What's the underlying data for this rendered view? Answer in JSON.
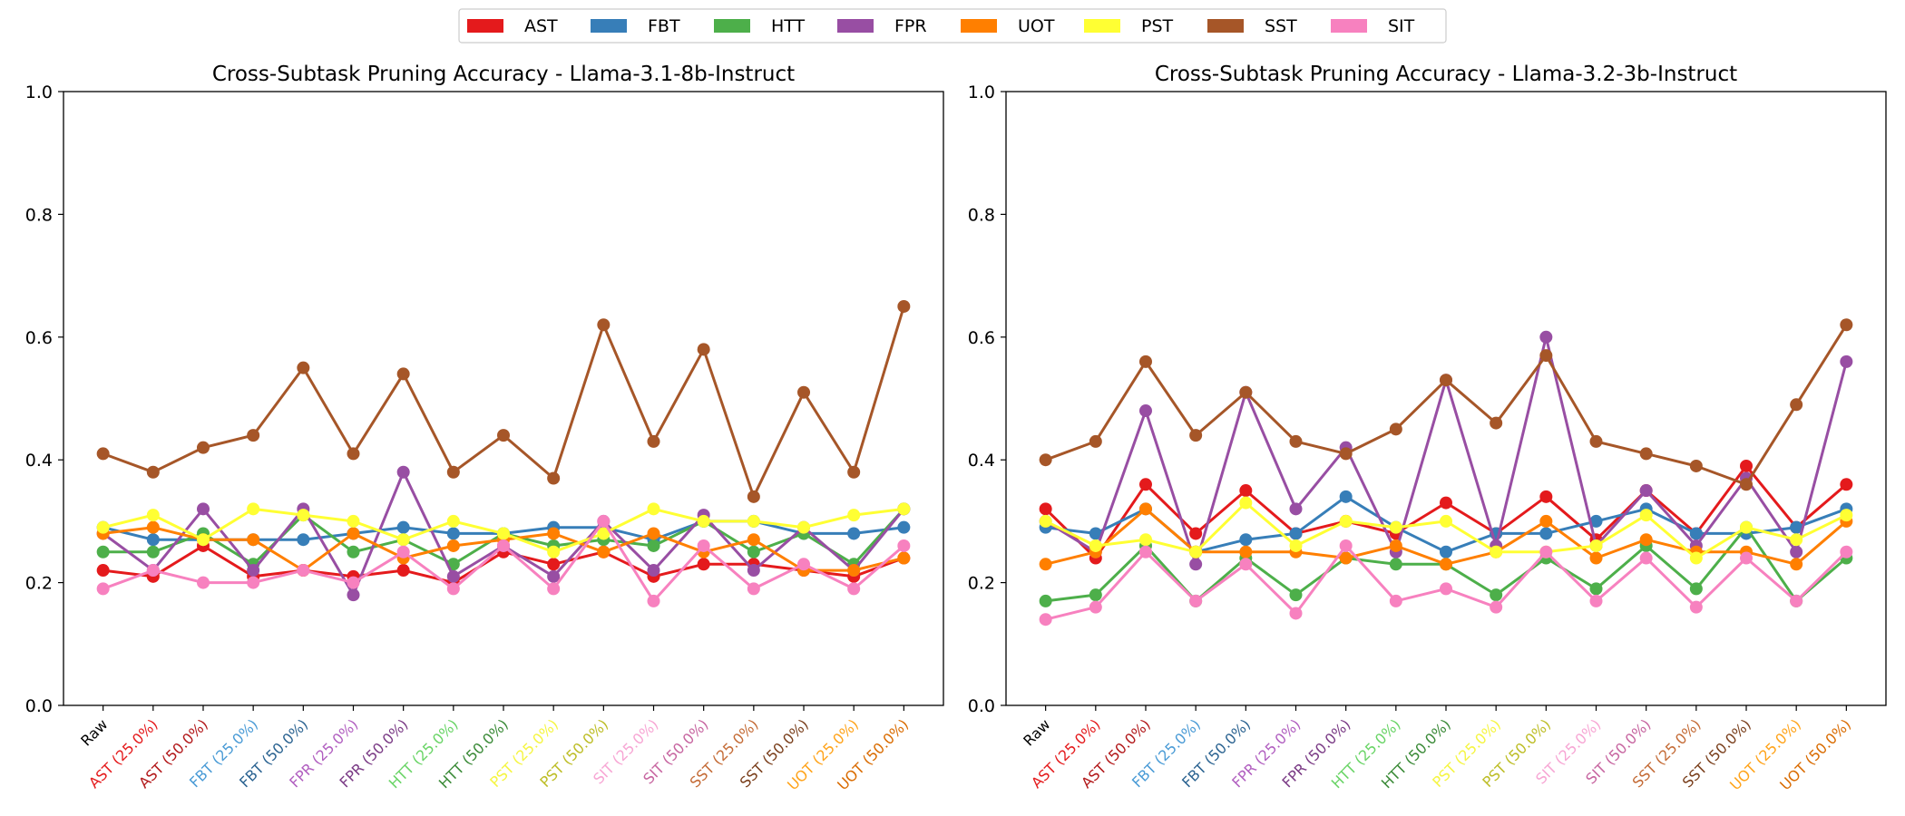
{
  "legend": {
    "entries": [
      {
        "name": "AST",
        "color": "#e41a1c"
      },
      {
        "name": "FBT",
        "color": "#377eb8"
      },
      {
        "name": "HTT",
        "color": "#4daf4a"
      },
      {
        "name": "FPR",
        "color": "#984ea3"
      },
      {
        "name": "UOT",
        "color": "#ff7f00"
      },
      {
        "name": "PST",
        "color": "#ffff33"
      },
      {
        "name": "SST",
        "color": "#a65628"
      },
      {
        "name": "SIT",
        "color": "#f781bf"
      }
    ]
  },
  "chart_data": [
    {
      "type": "line",
      "title": "Cross-Subtask Pruning Accuracy - Llama-3.1-8b-Instruct",
      "xlabel": "",
      "ylabel": "",
      "ylim": [
        0.0,
        1.0
      ],
      "yticks": [
        "0.0",
        "0.2",
        "0.4",
        "0.6",
        "0.8",
        "1.0"
      ],
      "grid": false,
      "legend_position": "top-center",
      "categories": [
        "Raw",
        "AST (25.0%)",
        "AST (50.0%)",
        "FBT (25.0%)",
        "FBT (50.0%)",
        "FPR (25.0%)",
        "FPR (50.0%)",
        "HTT (25.0%)",
        "HTT (50.0%)",
        "PST (25.0%)",
        "PST (50.0%)",
        "SIT (25.0%)",
        "SIT (50.0%)",
        "SST (25.0%)",
        "SST (50.0%)",
        "UOT (25.0%)",
        "UOT (50.0%)"
      ],
      "category_colors": [
        "#000000",
        "#e41a1c",
        "#b2181a",
        "#4a9bd6",
        "#2b6391",
        "#b15fc0",
        "#7a3a85",
        "#69d466",
        "#3a8a37",
        "#f5f542",
        "#bdbd26",
        "#f7a6d4",
        "#c765a0",
        "#c46b36",
        "#7a3f1c",
        "#ffa31a",
        "#d96b00"
      ],
      "series": [
        {
          "name": "AST",
          "color": "#e41a1c",
          "values": [
            0.22,
            0.21,
            0.26,
            0.21,
            0.22,
            0.21,
            0.22,
            0.2,
            0.25,
            0.23,
            0.25,
            0.21,
            0.23,
            0.23,
            0.22,
            0.21,
            0.24
          ]
        },
        {
          "name": "FBT",
          "color": "#377eb8",
          "values": [
            0.29,
            0.27,
            0.27,
            0.27,
            0.27,
            0.28,
            0.29,
            0.28,
            0.28,
            0.29,
            0.29,
            0.27,
            0.3,
            0.3,
            0.28,
            0.28,
            0.29
          ]
        },
        {
          "name": "HTT",
          "color": "#4daf4a",
          "values": [
            0.25,
            0.25,
            0.28,
            0.23,
            0.31,
            0.25,
            0.27,
            0.23,
            0.28,
            0.26,
            0.27,
            0.26,
            0.3,
            0.25,
            0.28,
            0.23,
            0.32
          ]
        },
        {
          "name": "FPR",
          "color": "#984ea3",
          "values": [
            0.28,
            0.22,
            0.32,
            0.22,
            0.32,
            0.18,
            0.38,
            0.21,
            0.26,
            0.21,
            0.3,
            0.22,
            0.31,
            0.22,
            0.29,
            0.22,
            0.32
          ]
        },
        {
          "name": "UOT",
          "color": "#ff7f00",
          "values": [
            0.28,
            0.29,
            0.27,
            0.27,
            0.22,
            0.28,
            0.24,
            0.26,
            0.27,
            0.28,
            0.25,
            0.28,
            0.25,
            0.27,
            0.22,
            0.22,
            0.24
          ]
        },
        {
          "name": "PST",
          "color": "#ffff33",
          "values": [
            0.29,
            0.31,
            0.27,
            0.32,
            0.31,
            0.3,
            0.27,
            0.3,
            0.28,
            0.25,
            0.28,
            0.32,
            0.3,
            0.3,
            0.29,
            0.31,
            0.32
          ]
        },
        {
          "name": "SST",
          "color": "#a65628",
          "values": [
            0.41,
            0.38,
            0.42,
            0.44,
            0.55,
            0.41,
            0.54,
            0.38,
            0.44,
            0.37,
            0.62,
            0.43,
            0.58,
            0.34,
            0.51,
            0.38,
            0.65
          ]
        },
        {
          "name": "SIT",
          "color": "#f781bf",
          "values": [
            0.19,
            0.22,
            0.2,
            0.2,
            0.22,
            0.2,
            0.25,
            0.19,
            0.26,
            0.19,
            0.3,
            0.17,
            0.26,
            0.19,
            0.23,
            0.19,
            0.26
          ]
        }
      ]
    },
    {
      "type": "line",
      "title": "Cross-Subtask Pruning Accuracy - Llama-3.2-3b-Instruct",
      "xlabel": "",
      "ylabel": "",
      "ylim": [
        0.0,
        1.0
      ],
      "yticks": [
        "0.0",
        "0.2",
        "0.4",
        "0.6",
        "0.8",
        "1.0"
      ],
      "grid": false,
      "legend_position": "top-center",
      "categories": [
        "Raw",
        "AST (25.0%)",
        "AST (50.0%)",
        "FBT (25.0%)",
        "FBT (50.0%)",
        "FPR (25.0%)",
        "FPR (50.0%)",
        "HTT (25.0%)",
        "HTT (50.0%)",
        "PST (25.0%)",
        "PST (50.0%)",
        "SIT (25.0%)",
        "SIT (50.0%)",
        "SST (25.0%)",
        "SST (50.0%)",
        "UOT (25.0%)",
        "UOT (50.0%)"
      ],
      "category_colors": [
        "#000000",
        "#e41a1c",
        "#b2181a",
        "#4a9bd6",
        "#2b6391",
        "#b15fc0",
        "#7a3a85",
        "#69d466",
        "#3a8a37",
        "#f5f542",
        "#bdbd26",
        "#f7a6d4",
        "#c765a0",
        "#c46b36",
        "#7a3f1c",
        "#ffa31a",
        "#d96b00"
      ],
      "series": [
        {
          "name": "AST",
          "color": "#e41a1c",
          "values": [
            0.32,
            0.24,
            0.36,
            0.28,
            0.35,
            0.28,
            0.3,
            0.28,
            0.33,
            0.28,
            0.34,
            0.27,
            0.35,
            0.28,
            0.39,
            0.29,
            0.36
          ]
        },
        {
          "name": "FBT",
          "color": "#377eb8",
          "values": [
            0.29,
            0.28,
            0.32,
            0.25,
            0.27,
            0.28,
            0.34,
            0.29,
            0.25,
            0.28,
            0.28,
            0.3,
            0.32,
            0.28,
            0.28,
            0.29,
            0.32
          ]
        },
        {
          "name": "HTT",
          "color": "#4daf4a",
          "values": [
            0.17,
            0.18,
            0.26,
            0.17,
            0.24,
            0.18,
            0.24,
            0.23,
            0.23,
            0.18,
            0.24,
            0.19,
            0.26,
            0.19,
            0.29,
            0.17,
            0.24
          ]
        },
        {
          "name": "FPR",
          "color": "#984ea3",
          "values": [
            0.3,
            0.25,
            0.48,
            0.23,
            0.51,
            0.32,
            0.42,
            0.25,
            0.53,
            0.26,
            0.6,
            0.26,
            0.35,
            0.26,
            0.37,
            0.25,
            0.56
          ]
        },
        {
          "name": "UOT",
          "color": "#ff7f00",
          "values": [
            0.23,
            0.25,
            0.32,
            0.25,
            0.25,
            0.25,
            0.24,
            0.26,
            0.23,
            0.25,
            0.3,
            0.24,
            0.27,
            0.25,
            0.25,
            0.23,
            0.3
          ]
        },
        {
          "name": "PST",
          "color": "#ffff33",
          "values": [
            0.3,
            0.26,
            0.27,
            0.25,
            0.33,
            0.26,
            0.3,
            0.29,
            0.3,
            0.25,
            0.25,
            0.26,
            0.31,
            0.24,
            0.29,
            0.27,
            0.31
          ]
        },
        {
          "name": "SST",
          "color": "#a65628",
          "values": [
            0.4,
            0.43,
            0.56,
            0.44,
            0.51,
            0.43,
            0.41,
            0.45,
            0.53,
            0.46,
            0.57,
            0.43,
            0.41,
            0.39,
            0.36,
            0.49,
            0.62
          ]
        },
        {
          "name": "SIT",
          "color": "#f781bf",
          "values": [
            0.14,
            0.16,
            0.25,
            0.17,
            0.23,
            0.15,
            0.26,
            0.17,
            0.19,
            0.16,
            0.25,
            0.17,
            0.24,
            0.16,
            0.24,
            0.17,
            0.25
          ]
        }
      ]
    }
  ]
}
